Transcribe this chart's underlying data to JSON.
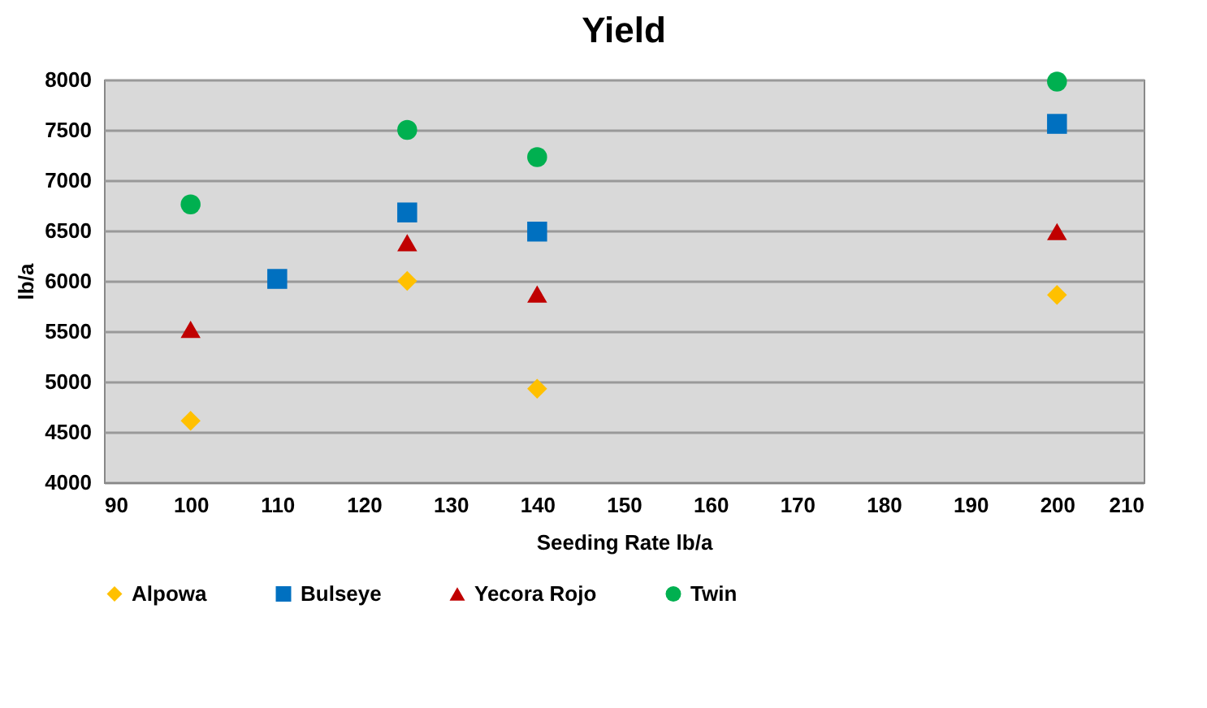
{
  "chart_data": {
    "type": "scatter",
    "title": "Yield",
    "xlabel": "Seeding Rate lb/a",
    "ylabel": "lb/a",
    "xlim": [
      90,
      210
    ],
    "xticks": [
      90,
      100,
      110,
      120,
      130,
      140,
      150,
      160,
      170,
      180,
      190,
      200,
      210
    ],
    "ylim": [
      4000,
      8000
    ],
    "yticks": [
      4000,
      4500,
      5000,
      5500,
      6000,
      6500,
      7000,
      7500,
      8000
    ],
    "grid": "y",
    "legend": "bottom",
    "series": [
      {
        "name": "Alpowa",
        "color": "#ffc000",
        "marker": "diamond",
        "x": [
          100,
          125,
          140,
          200
        ],
        "values": [
          4610,
          6000,
          4930,
          5860
        ]
      },
      {
        "name": "Bulseye",
        "color": "#0070c0",
        "marker": "square",
        "x": [
          110,
          125,
          140,
          200
        ],
        "values": [
          6020,
          6680,
          6490,
          7560
        ]
      },
      {
        "name": "Yecora Rojo",
        "color": "#c00000",
        "marker": "triangle",
        "x": [
          100,
          125,
          140,
          200
        ],
        "values": [
          5520,
          6380,
          5870,
          6490
        ]
      },
      {
        "name": "Twin",
        "color": "#00b050",
        "marker": "circle",
        "x": [
          100,
          125,
          140,
          200
        ],
        "values": [
          6760,
          7500,
          7230,
          7980
        ]
      }
    ]
  }
}
